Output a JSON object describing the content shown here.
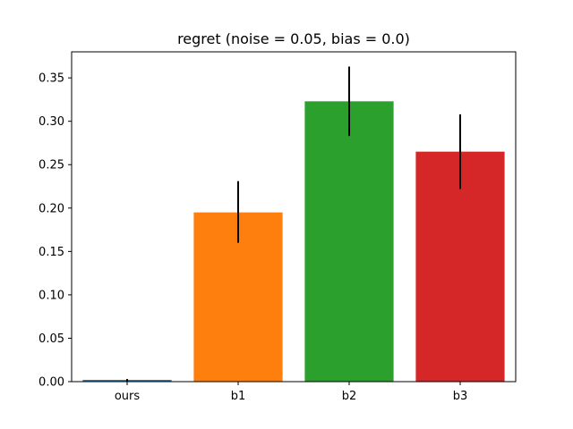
{
  "chart_data": {
    "type": "bar",
    "title": "regret (noise = 0.05, bias = 0.0)",
    "xlabel": "",
    "ylabel": "",
    "categories": [
      "ours",
      "b1",
      "b2",
      "b3"
    ],
    "values": [
      0.002,
      0.195,
      0.323,
      0.265
    ],
    "error_low": [
      0.0,
      0.16,
      0.283,
      0.222
    ],
    "error_high": [
      0.003,
      0.231,
      0.363,
      0.308
    ],
    "colors": [
      "#1f77b4",
      "#ff7f0e",
      "#2ca02c",
      "#d62728"
    ],
    "error_color": "#000000",
    "ylim": [
      0,
      0.38
    ],
    "yticks": [
      0.0,
      0.05,
      0.1,
      0.15,
      0.2,
      0.25,
      0.3,
      0.35
    ],
    "ytick_labels": [
      "0.00",
      "0.05",
      "0.10",
      "0.15",
      "0.20",
      "0.25",
      "0.30",
      "0.35"
    ],
    "grid": false,
    "legend": "none"
  }
}
